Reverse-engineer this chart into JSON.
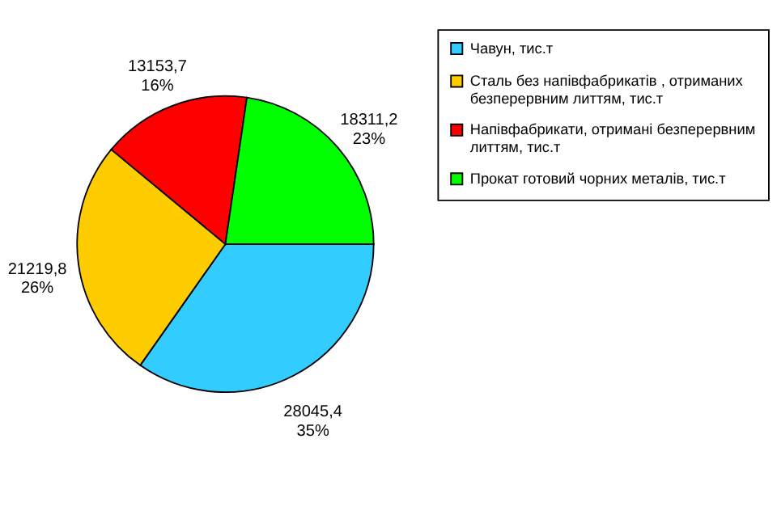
{
  "chart_data": {
    "type": "pie",
    "categories": [
      "Чавун, тис.т",
      "Сталь без напівфабрикатів , отриманих безперервним литтям, тис.т",
      "Напівфабрикати, отримані безперервним литтям, тис.т",
      "Прокат готовий чорних металів, тис.т"
    ],
    "values": [
      28045.4,
      21219.8,
      13153.7,
      18311.2
    ],
    "colors": [
      "#33ccff",
      "#ffcc00",
      "#ff0000",
      "#00ff00"
    ],
    "value_labels": [
      "28045,4\n35%",
      "21219,8\n26%",
      "13153,7\n16%",
      "18311,2\n23%"
    ],
    "legend": "right"
  }
}
